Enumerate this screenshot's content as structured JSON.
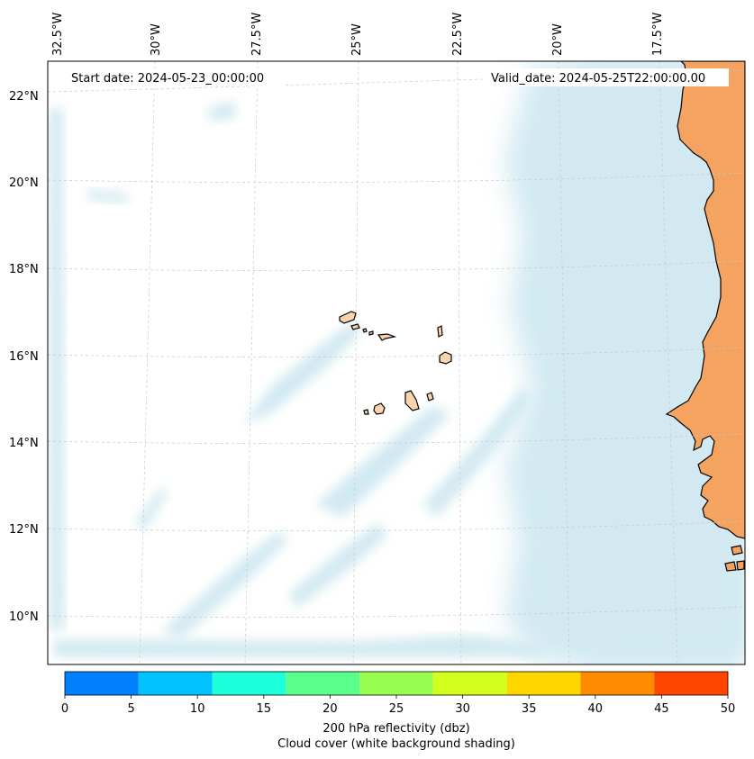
{
  "map": {
    "start_date": "Start date: 2024-05-23_00:00:00",
    "valid_date": "Valid_date: 2024-05-25T22:00:00.00",
    "lon_labels": [
      "32.5°W",
      "30°W",
      "27.5°W",
      "25°W",
      "22.5°W",
      "20°W",
      "17.5°W"
    ],
    "lat_labels": [
      "22°N",
      "20°N",
      "18°N",
      "16°N",
      "14°N",
      "12°N",
      "10°N"
    ],
    "colors": {
      "land": "#f4a460",
      "island": "#fbd3ae",
      "cloud": "#add8e6",
      "coastline": "#000000"
    }
  },
  "colorbar": {
    "ticks": [
      "0",
      "5",
      "10",
      "15",
      "20",
      "25",
      "30",
      "35",
      "40",
      "45",
      "50"
    ],
    "colors": [
      "#0080ff",
      "#00c3ff",
      "#1effdc",
      "#5aff8c",
      "#98ff50",
      "#d4ff1e",
      "#ffd700",
      "#ff8c00",
      "#ff4500"
    ],
    "label": "200 hPa reflectivity (dbz)",
    "sublabel": "Cloud cover (white background shading)"
  }
}
